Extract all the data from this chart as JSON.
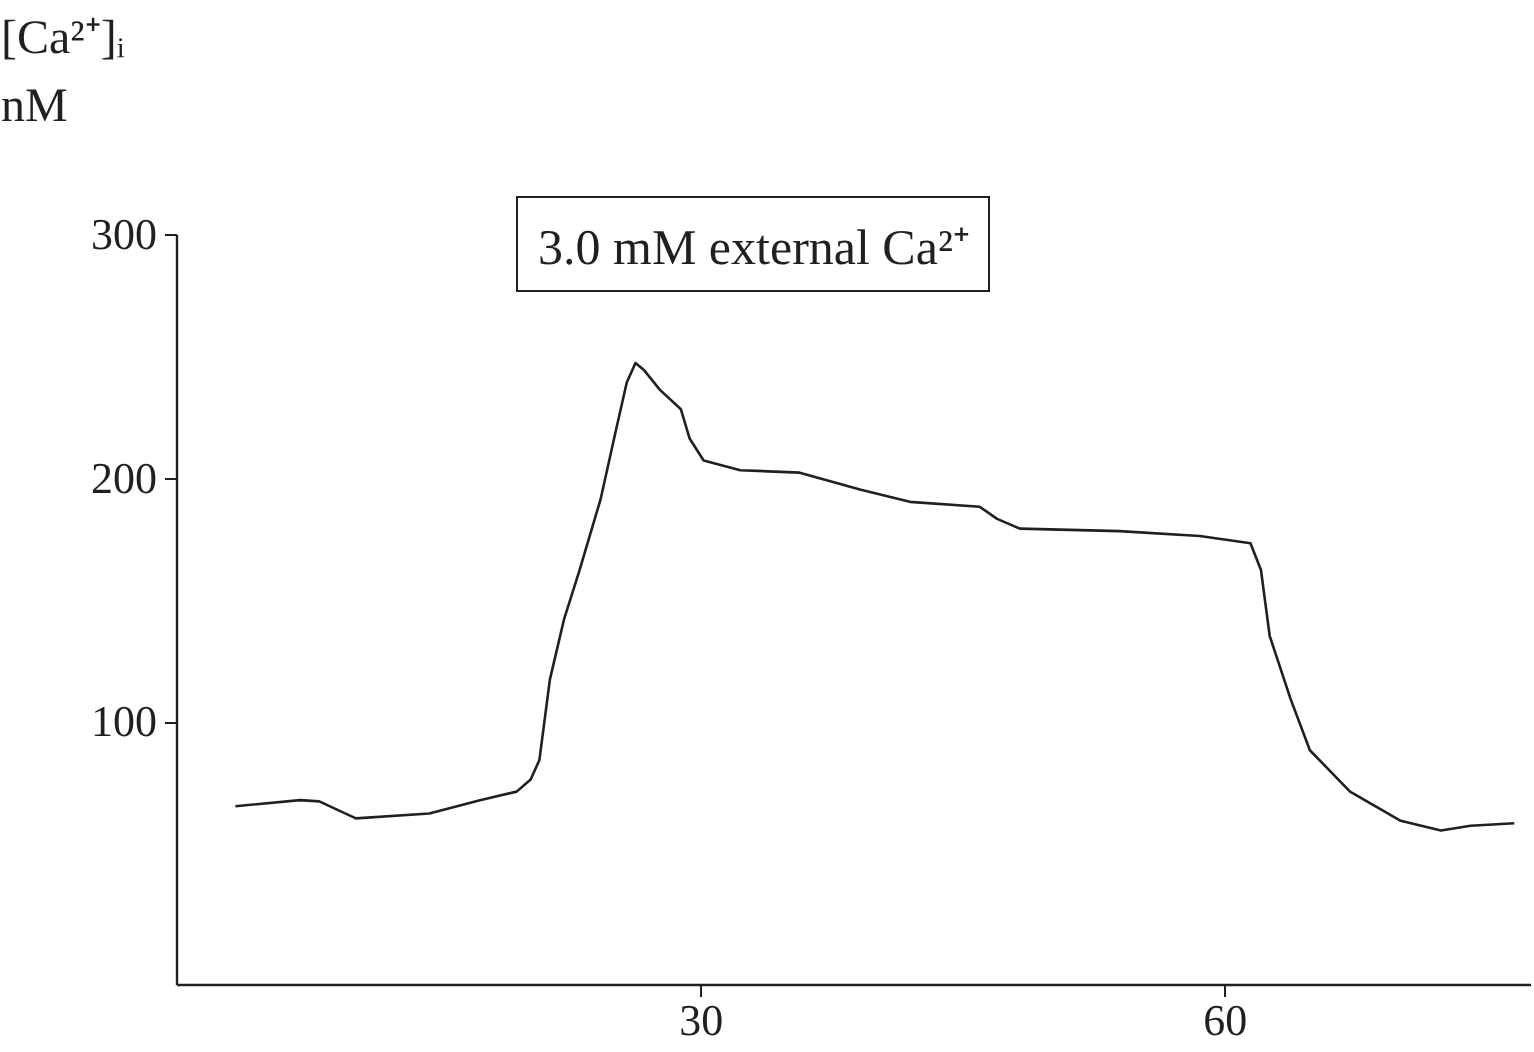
{
  "chart_data": {
    "type": "line",
    "ylabel": "[Ca²⁺]ᵢ nM",
    "annotations": [
      "3.0 mM external Ca²⁺"
    ],
    "x": [
      3.4,
      7.1,
      8.2,
      9.4,
      10.3,
      14.5,
      17.4,
      19.5,
      20.3,
      20.8,
      21.4,
      22.2,
      23.1,
      24.3,
      25.2,
      25.8,
      26.3,
      26.8,
      27.7,
      28.9,
      29.4,
      30.2,
      32.3,
      35.7,
      39.2,
      42.0,
      46.0,
      47.0,
      48.3,
      54.0,
      58.6,
      61.5,
      62.1,
      62.6,
      63.8,
      64.9,
      67.2,
      70.1,
      72.4,
      74.1,
      76.6
    ],
    "series": [
      {
        "color": "#231f20",
        "values": [
          65,
          67.5,
          67,
          63,
          60,
          62,
          67.5,
          71,
          76,
          84,
          117,
          141.5,
          162,
          191,
          220,
          239,
          247,
          244,
          236,
          228,
          216,
          207,
          203,
          202,
          195,
          190,
          188,
          183,
          179,
          178,
          176,
          173,
          162,
          135,
          109,
          88,
          71,
          59,
          55,
          57,
          58
        ]
      }
    ],
    "xlim": [
      0,
      77.5
    ],
    "ylim": [
      -8,
      300
    ],
    "xticks": [
      30,
      60
    ],
    "yticks": [
      100,
      200,
      300
    ],
    "grid": false,
    "legend": false,
    "marker": "none",
    "line_style": "solid"
  }
}
